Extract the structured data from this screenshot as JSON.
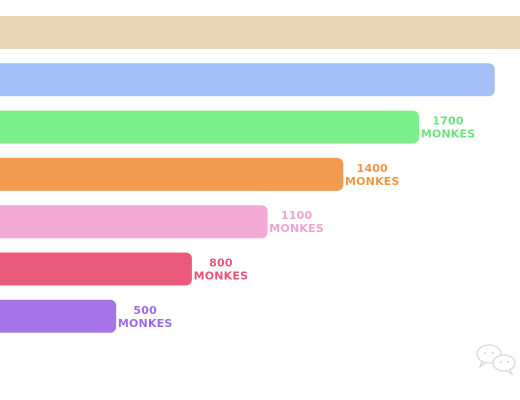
{
  "chart_data": {
    "type": "bar",
    "orientation": "horizontal",
    "unit": "MONKES",
    "xlim": [
      0,
      2100
    ],
    "series": [
      {
        "value": 2300,
        "color": "#ead4b6",
        "label_visible": false
      },
      {
        "value": 2000,
        "color": "#a5bff9",
        "label_visible": false
      },
      {
        "value": 1700,
        "color": "#7aef8a",
        "label_visible": true,
        "label_number": "1700",
        "label_unit": "MONKES",
        "label_color": "#6fe27f"
      },
      {
        "value": 1400,
        "color": "#f09b50",
        "label_visible": true,
        "label_number": "1400",
        "label_unit": "MONKES",
        "label_color": "#ef9644"
      },
      {
        "value": 1100,
        "color": "#f2a9d6",
        "label_visible": true,
        "label_number": "1100",
        "label_unit": "MONKES",
        "label_color": "#f0a3d2"
      },
      {
        "value": 800,
        "color": "#ec5a7b",
        "label_visible": true,
        "label_number": "800",
        "label_unit": "MONKES",
        "label_color": "#e8557a"
      },
      {
        "value": 500,
        "color": "#a574e8",
        "label_visible": true,
        "label_number": "500",
        "label_unit": "MONKES",
        "label_color": "#a06ae6"
      }
    ],
    "grid": false,
    "legend": "none"
  },
  "watermark_icon": "chat-bubbles-icon"
}
